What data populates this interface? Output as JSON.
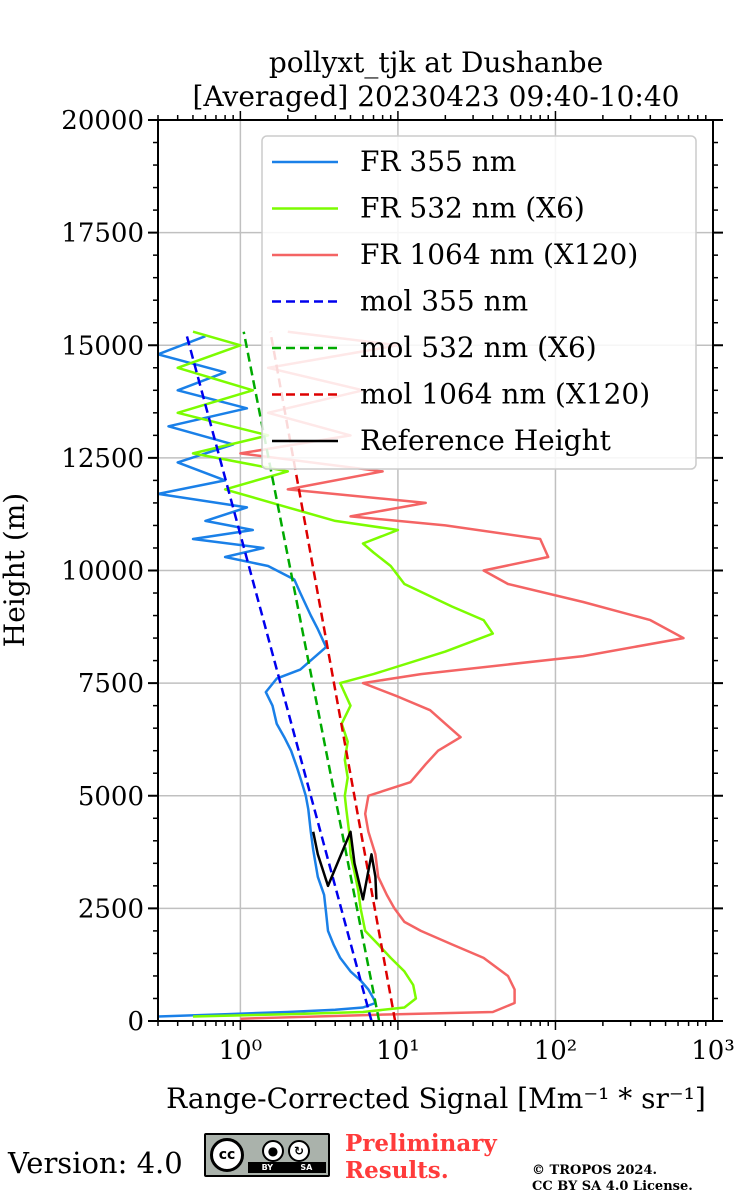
{
  "chart_data": {
    "type": "line",
    "title": "pollyxt_tjk at Dushanbe",
    "subtitle": "[Averaged] 20230423 09:40-10:40",
    "xlabel": "Range-Corrected Signal [Mm⁻¹ * sr⁻¹]",
    "ylabel": "Height (m)",
    "xscale": "log",
    "xlim": [
      0.3,
      1000
    ],
    "ylim": [
      0,
      20000
    ],
    "x_ticks": [
      {
        "value": 1,
        "label": "10⁰"
      },
      {
        "value": 10,
        "label": "10¹"
      },
      {
        "value": 100,
        "label": "10²"
      },
      {
        "value": 1000,
        "label": "10³"
      }
    ],
    "y_ticks": [
      0,
      2500,
      5000,
      7500,
      10000,
      12500,
      15000,
      17500,
      20000
    ],
    "grid": true,
    "legend_position": "top-right",
    "series": [
      {
        "name": "FR 355 nm",
        "color": "#1a80e8",
        "style": "solid",
        "points": [
          [
            0.3,
            100
          ],
          [
            0.8,
            150
          ],
          [
            2,
            200
          ],
          [
            4,
            250
          ],
          [
            6,
            300
          ],
          [
            7.2,
            400
          ],
          [
            7.0,
            500
          ],
          [
            6.5,
            700
          ],
          [
            5.8,
            900
          ],
          [
            5.0,
            1100
          ],
          [
            4.3,
            1400
          ],
          [
            3.9,
            1700
          ],
          [
            3.6,
            2000
          ],
          [
            3.5,
            2400
          ],
          [
            3.4,
            2800
          ],
          [
            3.1,
            3200
          ],
          [
            3.0,
            3500
          ],
          [
            2.9,
            3800
          ],
          [
            2.8,
            4200
          ],
          [
            2.7,
            4700
          ],
          [
            2.6,
            5000
          ],
          [
            2.45,
            5300
          ],
          [
            2.3,
            5600
          ],
          [
            2.1,
            6000
          ],
          [
            1.9,
            6300
          ],
          [
            1.7,
            6600
          ],
          [
            1.6,
            7000
          ],
          [
            1.45,
            7300
          ],
          [
            1.7,
            7600
          ],
          [
            2.4,
            7800
          ],
          [
            3.5,
            8300
          ],
          [
            3.1,
            8700
          ],
          [
            2.8,
            9000
          ],
          [
            2.4,
            9500
          ],
          [
            2.2,
            9800
          ],
          [
            1.5,
            10100
          ],
          [
            0.8,
            10300
          ],
          [
            1.4,
            10500
          ],
          [
            0.5,
            10700
          ],
          [
            1.2,
            10900
          ],
          [
            0.6,
            11100
          ],
          [
            1.1,
            11400
          ],
          [
            0.3,
            11700
          ],
          [
            0.8,
            12000
          ],
          [
            0.4,
            12400
          ],
          [
            0.9,
            12800
          ],
          [
            0.35,
            13200
          ],
          [
            1.1,
            13600
          ],
          [
            0.4,
            14000
          ],
          [
            0.8,
            14400
          ],
          [
            0.3,
            14800
          ],
          [
            0.6,
            15200
          ]
        ]
      },
      {
        "name": "FR 532 nm (X6)",
        "color": "#7cfc00",
        "style": "solid",
        "points": [
          [
            0.5,
            100
          ],
          [
            2,
            150
          ],
          [
            6,
            200
          ],
          [
            11,
            300
          ],
          [
            13,
            500
          ],
          [
            12.5,
            800
          ],
          [
            11,
            1100
          ],
          [
            9,
            1400
          ],
          [
            7.5,
            1700
          ],
          [
            6.2,
            2000
          ],
          [
            5.8,
            2500
          ],
          [
            5.6,
            2900
          ],
          [
            5.3,
            3300
          ],
          [
            5.0,
            3700
          ],
          [
            4.9,
            4200
          ],
          [
            4.7,
            4700
          ],
          [
            4.6,
            5000
          ],
          [
            4.8,
            5400
          ],
          [
            4.6,
            5800
          ],
          [
            4.8,
            6200
          ],
          [
            4.4,
            6600
          ],
          [
            5.0,
            7000
          ],
          [
            4.3,
            7500
          ],
          [
            7,
            7700
          ],
          [
            20,
            8200
          ],
          [
            40,
            8600
          ],
          [
            35,
            8900
          ],
          [
            22,
            9200
          ],
          [
            11,
            9700
          ],
          [
            9,
            10100
          ],
          [
            7,
            10400
          ],
          [
            6,
            10600
          ],
          [
            10,
            10900
          ],
          [
            4,
            11100
          ],
          [
            2,
            11400
          ],
          [
            0.8,
            11800
          ],
          [
            2,
            12200
          ],
          [
            0.5,
            12600
          ],
          [
            1.5,
            13000
          ],
          [
            0.4,
            13500
          ],
          [
            1.2,
            14000
          ],
          [
            0.4,
            14500
          ],
          [
            1.0,
            15000
          ],
          [
            0.5,
            15300
          ]
        ]
      },
      {
        "name": "FR 1064 nm (X120)",
        "color": "#f46464",
        "style": "solid",
        "points": [
          [
            1,
            50
          ],
          [
            10,
            150
          ],
          [
            40,
            200
          ],
          [
            55,
            400
          ],
          [
            55,
            700
          ],
          [
            50,
            1000
          ],
          [
            35,
            1400
          ],
          [
            22,
            1700
          ],
          [
            14,
            2000
          ],
          [
            11,
            2200
          ],
          [
            9.5,
            2500
          ],
          [
            8.5,
            2800
          ],
          [
            7.5,
            3200
          ],
          [
            7.2,
            3700
          ],
          [
            6.5,
            4200
          ],
          [
            6.2,
            4600
          ],
          [
            6.5,
            5000
          ],
          [
            12,
            5300
          ],
          [
            15,
            5700
          ],
          [
            18,
            6000
          ],
          [
            25,
            6300
          ],
          [
            20,
            6600
          ],
          [
            16,
            6900
          ],
          [
            10,
            7200
          ],
          [
            6,
            7500
          ],
          [
            14,
            7700
          ],
          [
            150,
            8100
          ],
          [
            650,
            8500
          ],
          [
            400,
            8900
          ],
          [
            150,
            9300
          ],
          [
            50,
            9700
          ],
          [
            35,
            10000
          ],
          [
            90,
            10300
          ],
          [
            80,
            10700
          ],
          [
            20,
            11000
          ],
          [
            5,
            11200
          ],
          [
            15,
            11500
          ],
          [
            2,
            11800
          ],
          [
            8,
            12200
          ],
          [
            1,
            12600
          ],
          [
            5,
            13000
          ],
          [
            1.5,
            13500
          ],
          [
            6,
            14000
          ],
          [
            1.5,
            14500
          ],
          [
            10,
            15000
          ],
          [
            2,
            15300
          ]
        ]
      },
      {
        "name": "mol 355 nm",
        "color": "#0000ee",
        "style": "dashed",
        "points": [
          [
            6.8,
            0
          ],
          [
            0.45,
            15300
          ]
        ]
      },
      {
        "name": "mol 532 nm (X6)",
        "color": "#00aa00",
        "style": "dashed",
        "points": [
          [
            7.6,
            0
          ],
          [
            1.05,
            15300
          ]
        ]
      },
      {
        "name": "mol 1064 nm (X120)",
        "color": "#dd0000",
        "style": "dashed",
        "points": [
          [
            9.6,
            0
          ],
          [
            1.55,
            15300
          ]
        ]
      },
      {
        "name": "Reference Height",
        "color": "#000000",
        "style": "solid",
        "points": [
          [
            2.9,
            4200
          ],
          [
            3.1,
            3700
          ],
          [
            3.6,
            3000
          ],
          [
            5.0,
            4200
          ],
          [
            5.3,
            3500
          ],
          [
            6.0,
            2700
          ],
          [
            6.8,
            3700
          ],
          [
            7.2,
            3200
          ],
          [
            7.3,
            2700
          ]
        ]
      }
    ]
  },
  "footer": {
    "version": "Version: 4.0",
    "cc_icon": "cc-by-sa-icon",
    "cc_label": "cc",
    "cc_by": "BY",
    "cc_sa": "SA",
    "preliminary_line1": "Preliminary",
    "preliminary_line2": "Results.",
    "copyright_line1": "© TROPOS 2024.",
    "copyright_line2": "CC BY SA 4.0 License."
  }
}
